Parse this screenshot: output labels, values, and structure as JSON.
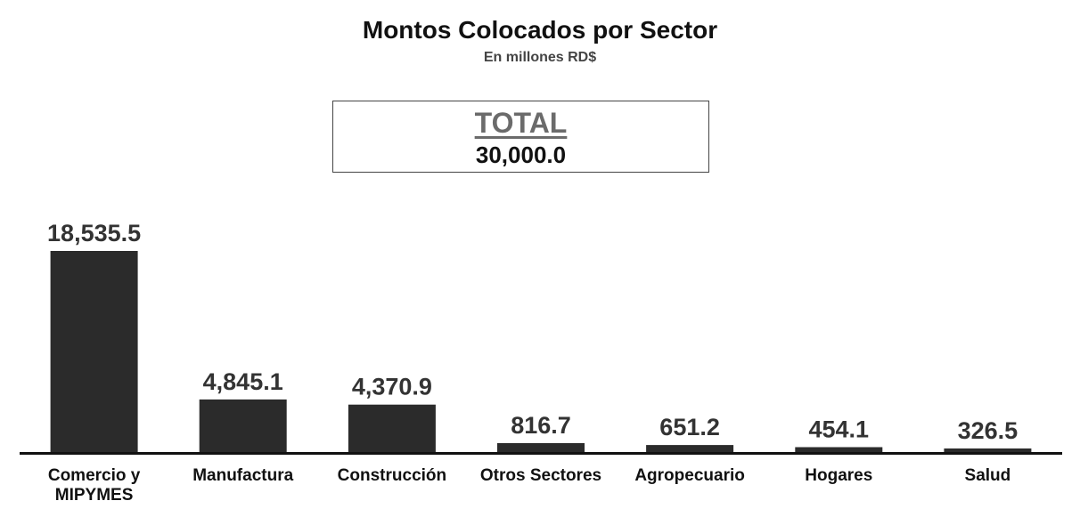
{
  "header": {
    "title": "Montos Colocados por Sector",
    "subtitle": "En millones RD$"
  },
  "total": {
    "label": "TOTAL",
    "value": "30,000.0"
  },
  "colors": {
    "bar": "#2b2b2b",
    "axis": "#111111"
  },
  "chart_data": {
    "type": "bar",
    "title": "Montos Colocados por Sector",
    "subtitle": "En millones RD$",
    "xlabel": "",
    "ylabel": "",
    "grid": false,
    "categories": [
      "Comercio y MIPYMES",
      "Manufactura",
      "Construcción",
      "Otros Sectores",
      "Agropecuario",
      "Hogares",
      "Salud"
    ],
    "category_lines": [
      [
        "Comercio y",
        "MIPYMES"
      ],
      [
        "Manufactura"
      ],
      [
        "Construcción"
      ],
      [
        "Otros Sectores"
      ],
      [
        "Agropecuario"
      ],
      [
        "Hogares"
      ],
      [
        "Salud"
      ]
    ],
    "values": [
      18535.5,
      4845.1,
      4370.9,
      816.7,
      651.2,
      454.1,
      326.5
    ],
    "value_labels": [
      "18,535.5",
      "4,845.1",
      "4,370.9",
      "816.7",
      "651.2",
      "454.1",
      "326.5"
    ],
    "ylim": [
      0,
      18535.5
    ]
  }
}
